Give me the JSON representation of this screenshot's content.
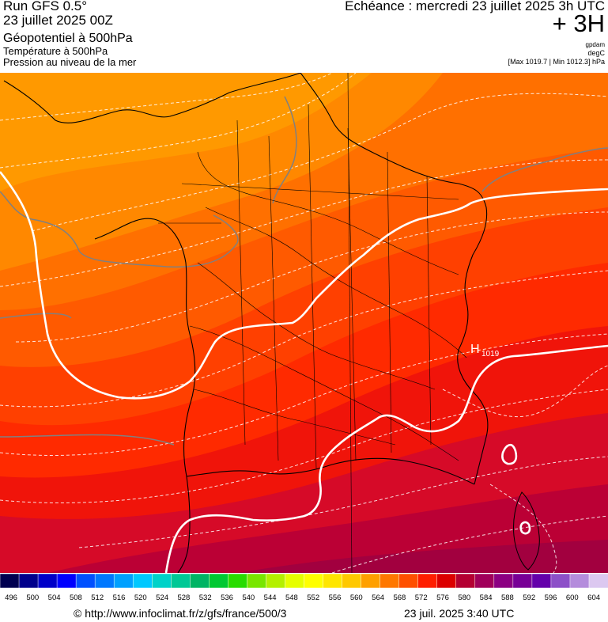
{
  "header": {
    "run_title": "Run GFS 0.5°",
    "run_date": "23 juillet 2025 00Z",
    "geopotential_label": "Géopotentiel à 500hPa",
    "temperature_label": "Température à 500hPa",
    "pressure_label": "Pression au niveau de la mer",
    "echeance": "Echéance : mercredi 23 juillet 2025 3h UTC",
    "forecast_step": "+ 3H",
    "unit_geopotential": "gpdam",
    "unit_temperature": "degC",
    "pressure_range": "[Max 1019.7 | Min 1012.3] hPa"
  },
  "map": {
    "high_marker": "H",
    "high_value": "1019",
    "colors": {
      "fill_levels": [
        "#ff9900",
        "#ff8000",
        "#ff6600",
        "#ff4d00",
        "#ff3300",
        "#ff1a00",
        "#e60a1a",
        "#cc0033",
        "#b3003f",
        "#990044"
      ],
      "isobar": "#ffffff",
      "isotherm": "#ffffff",
      "border": "#000000",
      "coast_grey": "#808080"
    }
  },
  "legend": {
    "labels": [
      "496",
      "500",
      "504",
      "508",
      "512",
      "516",
      "520",
      "524",
      "528",
      "532",
      "536",
      "540",
      "544",
      "548",
      "552",
      "556",
      "560",
      "564",
      "568",
      "572",
      "576",
      "580",
      "584",
      "588",
      "592",
      "596",
      "600",
      "604"
    ],
    "colors": [
      "#000050",
      "#00008c",
      "#0000c8",
      "#0000ff",
      "#0050ff",
      "#0078ff",
      "#00a0ff",
      "#00c8ff",
      "#00d2c8",
      "#00c896",
      "#00b464",
      "#00c832",
      "#28dc00",
      "#78e600",
      "#b4f000",
      "#e6ff00",
      "#ffff00",
      "#ffe600",
      "#ffc800",
      "#ffa000",
      "#ff7800",
      "#ff5000",
      "#ff1e00",
      "#dc0000",
      "#b40032",
      "#a0005a",
      "#8c0082",
      "#780096",
      "#6400aa",
      "#8c50c8",
      "#b48cdc",
      "#dcc8f0"
    ]
  },
  "footer": {
    "url": "© http://www.infoclimat.fr/z/gfs/france/500/3",
    "timestamp": "23 juil. 2025  3:40 UTC"
  }
}
